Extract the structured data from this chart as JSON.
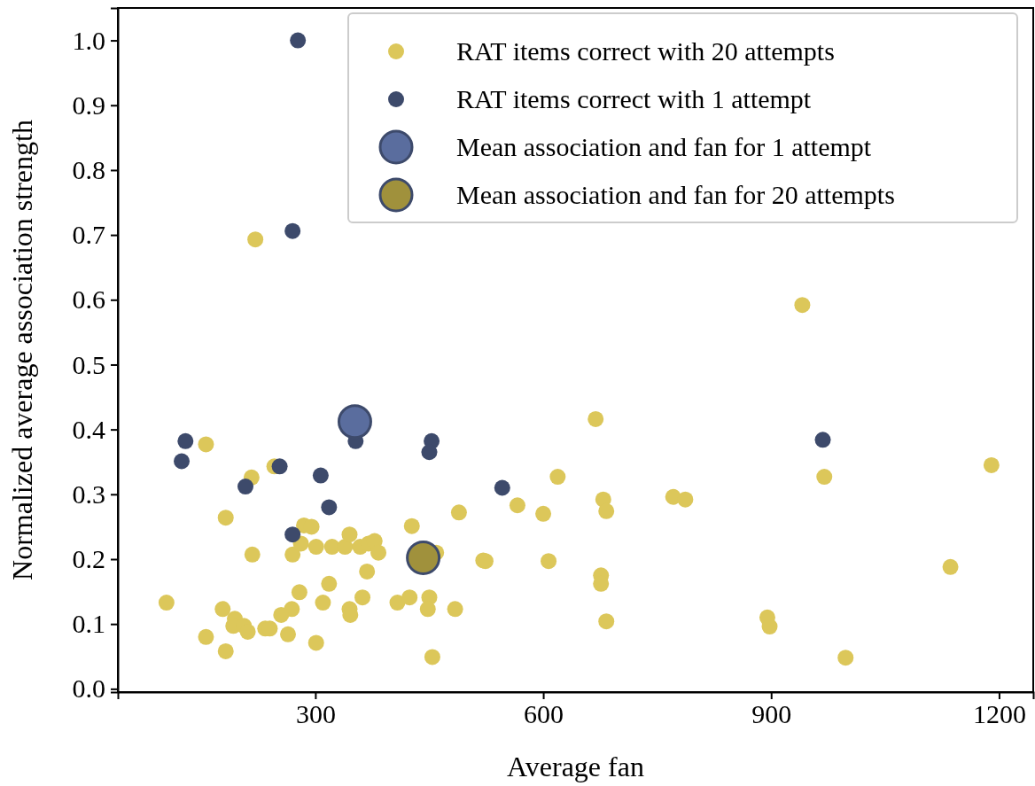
{
  "chart_data": {
    "type": "scatter",
    "xlabel": "Average fan",
    "ylabel": "Normalized average association strength",
    "xlim": [
      40,
      1245
    ],
    "ylim": [
      -0.005,
      1.05
    ],
    "xticks": [
      300,
      600,
      900,
      1200
    ],
    "yticks": [
      {
        "value": 0,
        "label": "0.0"
      },
      0.1,
      0.2,
      0.3,
      0.4,
      0.5,
      0.6,
      0.7,
      0.8,
      0.9,
      {
        "value": 1,
        "label": "1.0"
      }
    ],
    "legend": "top right",
    "marker": "circle",
    "grid": false,
    "series": [
      {
        "name": "RAT items correct with 20 attempts",
        "color": "#dcc75a",
        "x": [
          221,
          156,
          216,
          246,
          182,
          489,
          427,
          285,
          295,
          217,
          270,
          281,
          301,
          322,
          339,
          345,
          359,
          370,
          378,
          383,
          368,
          459,
          521,
          318,
          279,
          362,
          408,
          424,
          450,
          448,
          484,
          310,
          345,
          346,
          269,
          255,
          104,
          178,
          194,
          192,
          206,
          211,
          234,
          240,
          156,
          264,
          301,
          182,
          454,
          941,
          669,
          619,
          970,
          1190,
          566,
          600,
          679,
          683,
          771,
          787,
          524,
          607,
          676,
          676,
          683,
          895,
          898,
          998,
          1136
        ],
        "values": [
          0.693,
          0.377,
          0.326,
          0.343,
          0.264,
          0.272,
          0.251,
          0.252,
          0.25,
          0.207,
          0.207,
          0.224,
          0.219,
          0.219,
          0.219,
          0.238,
          0.219,
          0.224,
          0.228,
          0.21,
          0.181,
          0.21,
          0.198,
          0.162,
          0.149,
          0.141,
          0.133,
          0.141,
          0.141,
          0.123,
          0.123,
          0.133,
          0.123,
          0.114,
          0.123,
          0.114,
          0.133,
          0.123,
          0.108,
          0.097,
          0.097,
          0.088,
          0.093,
          0.093,
          0.08,
          0.084,
          0.071,
          0.058,
          0.049,
          0.592,
          0.416,
          0.327,
          0.327,
          0.345,
          0.283,
          0.27,
          0.292,
          0.274,
          0.296,
          0.292,
          0.197,
          0.197,
          0.175,
          0.162,
          0.104,
          0.11,
          0.096,
          0.048,
          0.188
        ]
      },
      {
        "name": "RAT items correct with 1 attempt",
        "color": "#3d4a6b",
        "x": [
          277,
          270,
          129,
          124,
          208,
          253,
          307,
          318,
          353,
          453,
          450,
          270,
          546,
          968
        ],
        "values": [
          1.0,
          0.706,
          0.382,
          0.351,
          0.312,
          0.343,
          0.329,
          0.28,
          0.382,
          0.382,
          0.365,
          0.238,
          0.31,
          0.384
        ]
      },
      {
        "name": "Mean association and fan for 1 attempt",
        "type": "bubble",
        "color": "#5a6d9e",
        "x": [
          352
        ],
        "values": [
          0.412
        ],
        "sizes": [
          1
        ]
      },
      {
        "name": "Mean association and fan for 20 attempts",
        "type": "bubble",
        "color": "#a0913c",
        "x": [
          442
        ],
        "values": [
          0.202
        ],
        "sizes": [
          1
        ]
      }
    ]
  }
}
